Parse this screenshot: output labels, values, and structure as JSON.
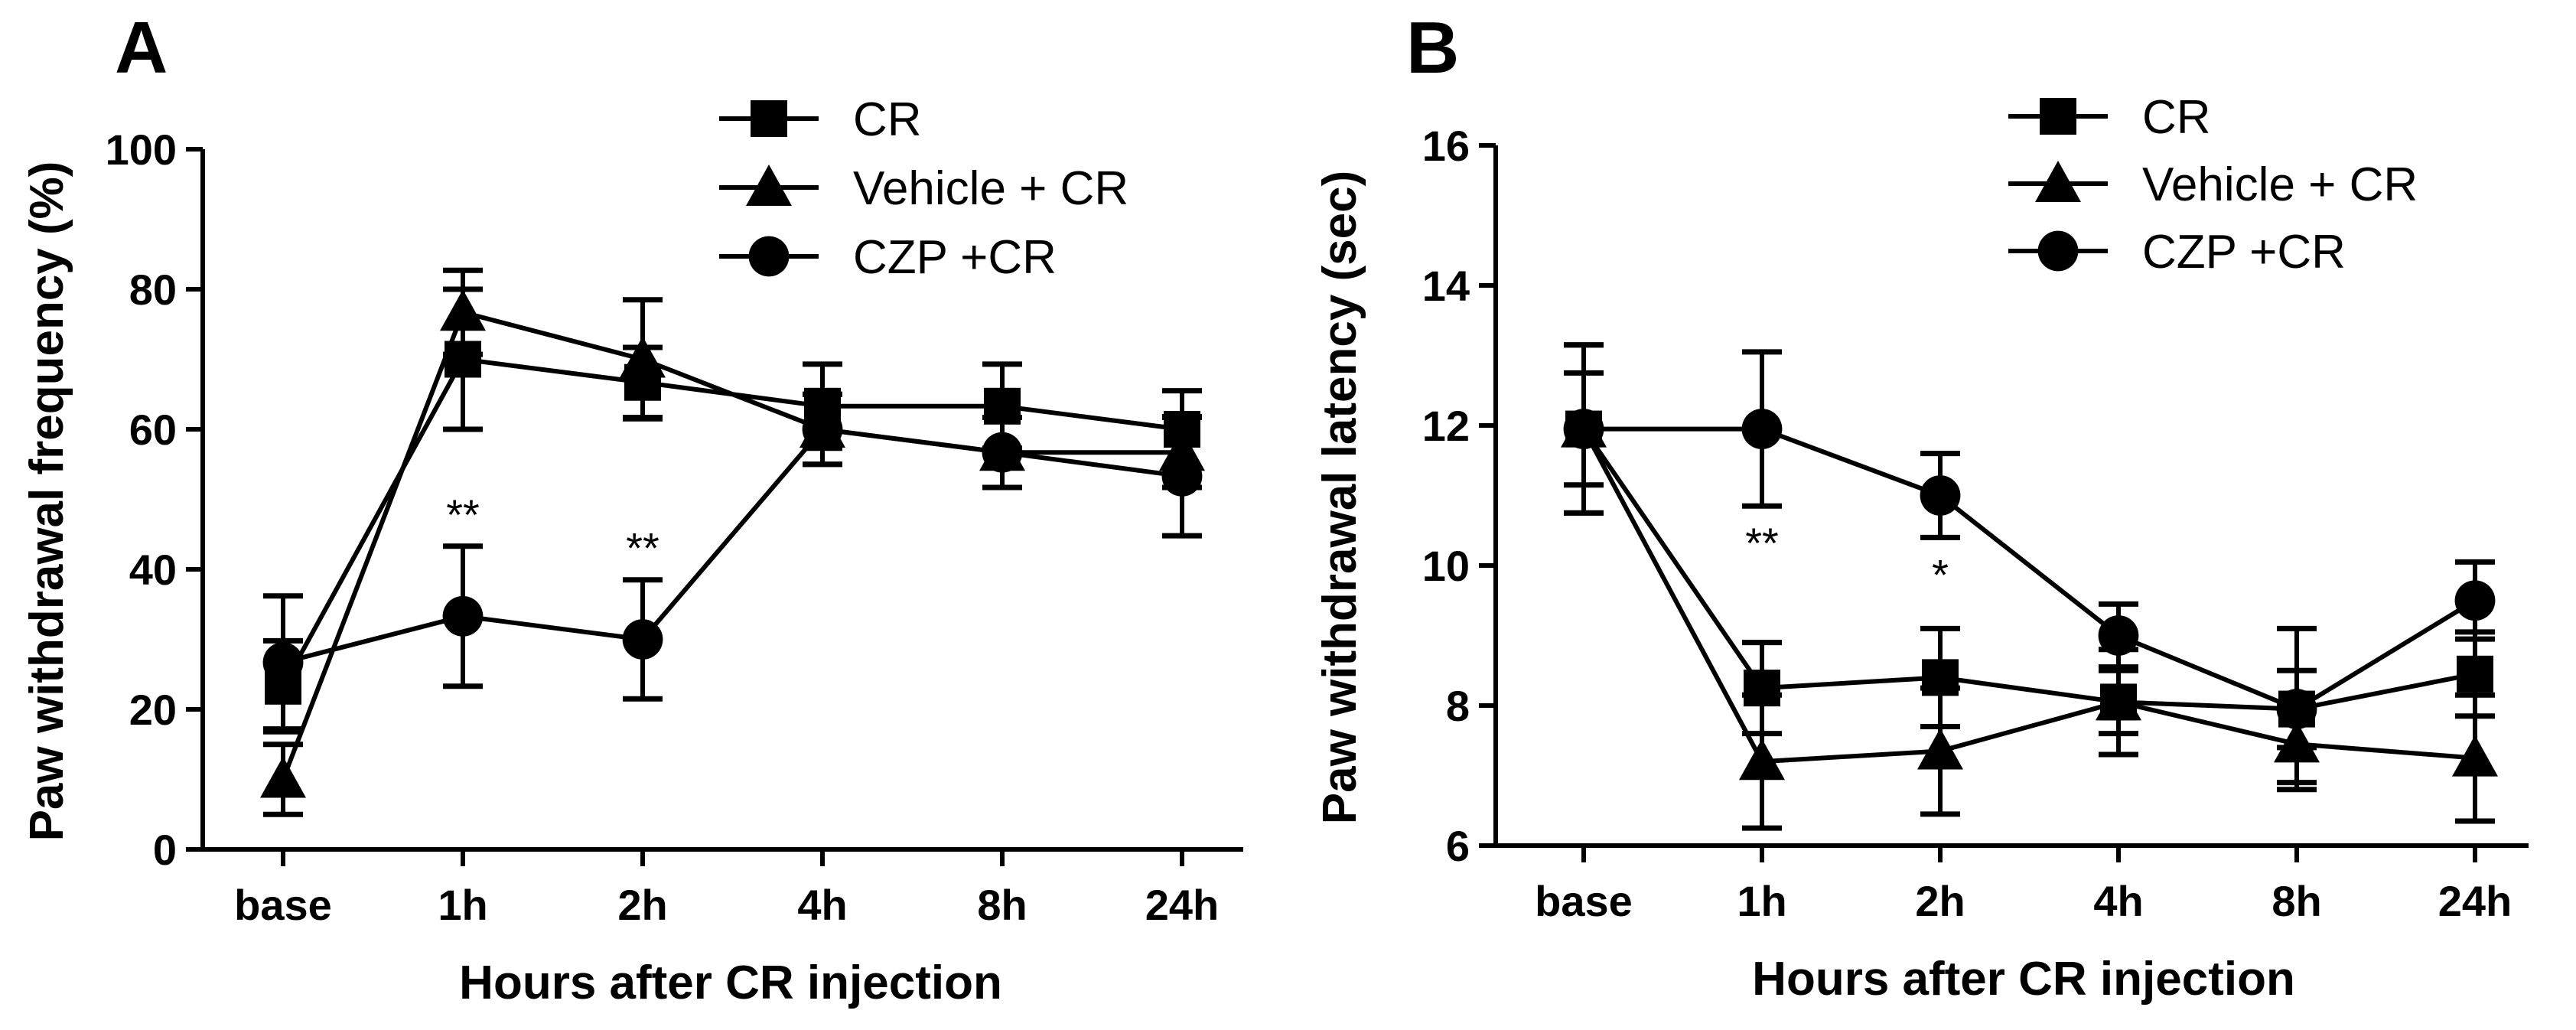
{
  "chart_data": [
    {
      "type": "line",
      "panel_label": "A",
      "xlabel": "Hours after CR injection",
      "ylabel": "Paw withdrawal frequency (%)",
      "categories": [
        "base",
        "1h",
        "2h",
        "4h",
        "8h",
        "24h"
      ],
      "ylim": [
        0,
        100
      ],
      "yticks": [
        "0",
        "20",
        "40",
        "60",
        "80",
        "100"
      ],
      "legend_position": "top-right",
      "series": [
        {
          "name": "CR",
          "marker": "square",
          "values": [
            23.3,
            70,
            66.7,
            63.3,
            63.3,
            60
          ],
          "error": [
            6.5,
            10,
            5,
            6,
            6,
            5.5
          ]
        },
        {
          "name": "Vehicle + CR",
          "marker": "triangle",
          "values": [
            10,
            76.7,
            70,
            60,
            56.7,
            56.7
          ],
          "error": [
            5,
            6,
            8.5,
            5,
            5,
            5
          ]
        },
        {
          "name": "CZP +CR",
          "marker": "circle",
          "values": [
            26.7,
            33.3,
            30,
            60,
            56.7,
            53.3
          ],
          "error": [
            9.5,
            10,
            8.5,
            5,
            5,
            8.5
          ]
        }
      ],
      "annotations": [
        {
          "category": "1h",
          "text": "**"
        },
        {
          "category": "2h",
          "text": "**"
        }
      ]
    },
    {
      "type": "line",
      "panel_label": "B",
      "xlabel": "Hours after CR injection",
      "ylabel": "Paw withdrawal latency (sec)",
      "categories": [
        "base",
        "1h",
        "2h",
        "4h",
        "8h",
        "24h"
      ],
      "ylim": [
        6,
        16
      ],
      "yticks": [
        "6",
        "8",
        "10",
        "12",
        "14",
        "16"
      ],
      "legend_position": "top-right",
      "series": [
        {
          "name": "CR",
          "marker": "square",
          "values": [
            11.95,
            8.25,
            8.4,
            8.05,
            7.95,
            8.45
          ],
          "error": [
            0.8,
            0.65,
            0.7,
            0.45,
            0.55,
            0.6
          ]
        },
        {
          "name": "Vehicle + CR",
          "marker": "triangle",
          "values": [
            11.95,
            7.2,
            7.35,
            8.05,
            7.45,
            7.25
          ],
          "error": [
            1.2,
            0.95,
            0.9,
            0.75,
            0.55,
            0.9
          ]
        },
        {
          "name": "CZP +CR",
          "marker": "circle",
          "values": [
            11.95,
            11.95,
            11.0,
            9.0,
            7.95,
            9.5
          ],
          "error": [
            1.2,
            1.1,
            0.6,
            0.45,
            1.15,
            0.55
          ]
        }
      ],
      "annotations": [
        {
          "category": "1h",
          "text": "**"
        },
        {
          "category": "2h",
          "text": "*"
        }
      ]
    }
  ],
  "colors": {
    "ink": "#000000",
    "background": "#ffffff"
  }
}
